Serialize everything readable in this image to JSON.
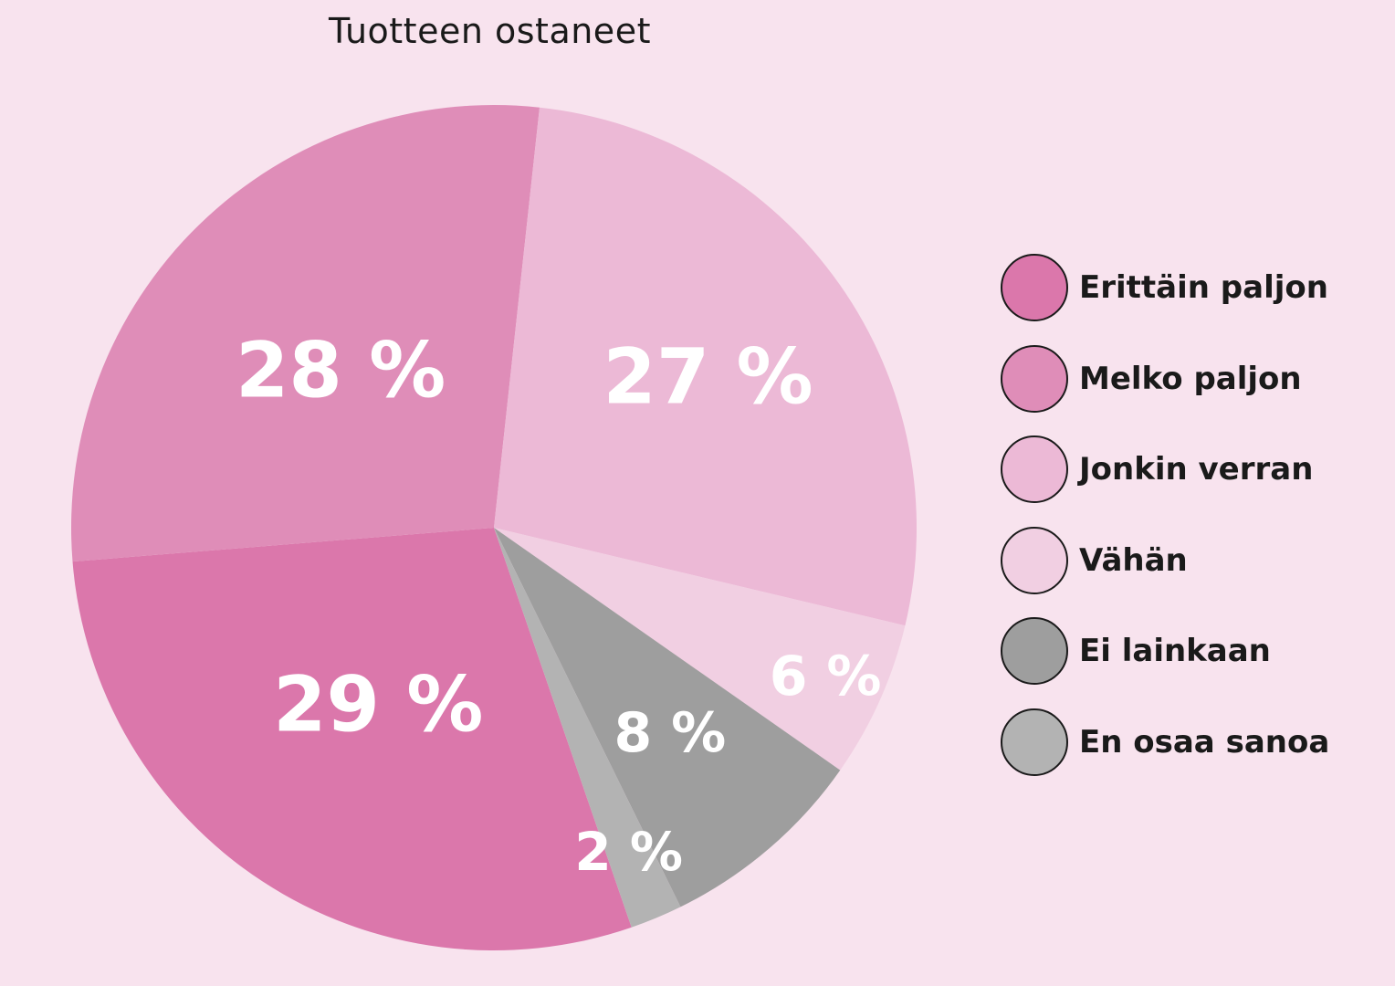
{
  "chart_data": {
    "type": "pie",
    "title": "Tuotteen ostaneet",
    "slices": [
      {
        "label": "Erittäin paljon",
        "value": 29,
        "display": "29 %",
        "color": "#db77ab"
      },
      {
        "label": "Melko paljon",
        "value": 28,
        "display": "28 %",
        "color": "#df8db8"
      },
      {
        "label": "Jonkin verran",
        "value": 27,
        "display": "27 %",
        "color": "#ecb9d6"
      },
      {
        "label": "Vähän",
        "value": 6,
        "display": "6 %",
        "color": "#f1cfe2"
      },
      {
        "label": "Ei lainkaan",
        "value": 8,
        "display": "8 %",
        "color": "#9e9e9e"
      },
      {
        "label": "En osaa sanoa",
        "value": 2,
        "display": "2 %",
        "color": "#b3b3b3"
      }
    ],
    "legend_position": "right"
  }
}
